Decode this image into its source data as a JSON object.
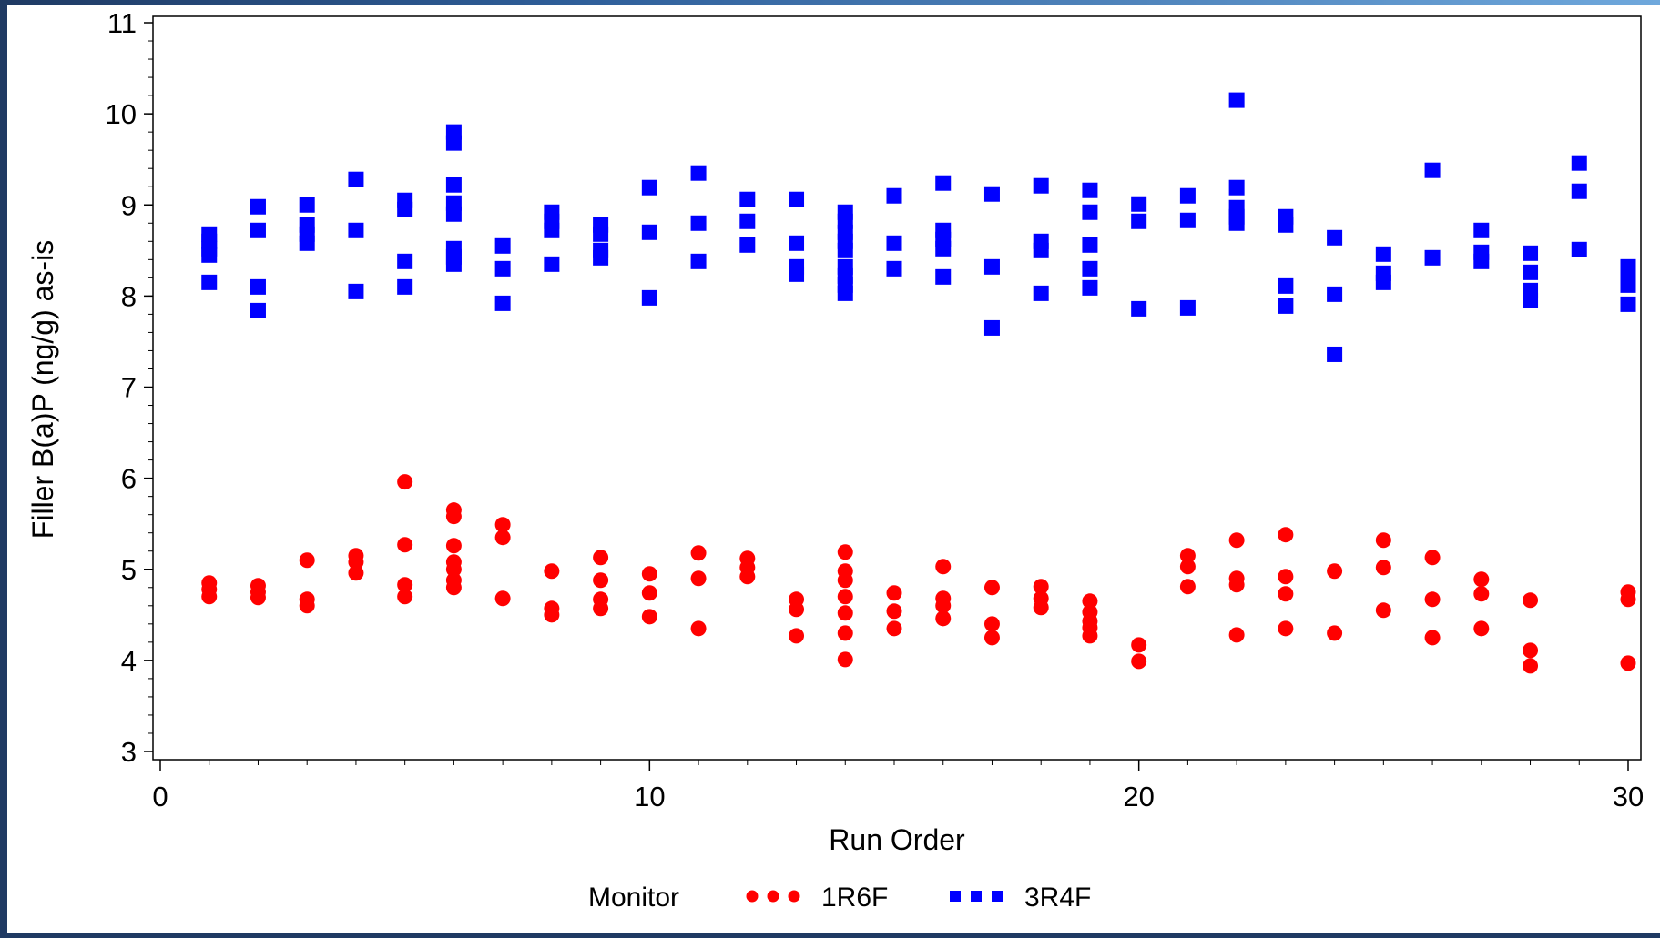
{
  "chart_data": {
    "type": "scatter",
    "title": "",
    "xlabel": "Run Order",
    "ylabel": "Filler B(a)P (ng/g) as-is",
    "xlim": [
      0,
      30
    ],
    "ylim": [
      3,
      11
    ],
    "x_ticks": [
      0,
      10,
      20,
      30
    ],
    "y_ticks": [
      3,
      4,
      5,
      6,
      7,
      8,
      9,
      10,
      11
    ],
    "x_tick_labels": [
      "0",
      "10",
      "20",
      "30"
    ],
    "y_tick_labels": [
      "3",
      "4",
      "5",
      "6",
      "7",
      "8",
      "9",
      "10",
      "11"
    ],
    "grid": false,
    "legend": {
      "title": "Monitor",
      "placement": "bottom-center"
    },
    "series": [
      {
        "name": "1R6F",
        "marker": "circle",
        "color": "#ff0000",
        "points": [
          [
            1,
            4.85
          ],
          [
            1,
            4.78
          ],
          [
            1,
            4.7
          ],
          [
            2,
            4.82
          ],
          [
            2,
            4.75
          ],
          [
            2,
            4.69
          ],
          [
            3,
            5.1
          ],
          [
            3,
            4.67
          ],
          [
            3,
            4.6
          ],
          [
            4,
            5.15
          ],
          [
            4,
            5.08
          ],
          [
            4,
            4.96
          ],
          [
            5,
            5.96
          ],
          [
            5,
            5.27
          ],
          [
            5,
            4.83
          ],
          [
            5,
            4.7
          ],
          [
            6,
            5.65
          ],
          [
            6,
            5.58
          ],
          [
            6,
            5.26
          ],
          [
            6,
            5.08
          ],
          [
            6,
            5.0
          ],
          [
            6,
            4.88
          ],
          [
            6,
            4.8
          ],
          [
            7,
            5.49
          ],
          [
            7,
            5.35
          ],
          [
            7,
            4.68
          ],
          [
            8,
            4.98
          ],
          [
            8,
            4.57
          ],
          [
            8,
            4.5
          ],
          [
            9,
            5.13
          ],
          [
            9,
            4.88
          ],
          [
            9,
            4.67
          ],
          [
            9,
            4.57
          ],
          [
            10,
            4.95
          ],
          [
            10,
            4.74
          ],
          [
            10,
            4.48
          ],
          [
            11,
            5.18
          ],
          [
            11,
            4.9
          ],
          [
            11,
            4.35
          ],
          [
            12,
            5.12
          ],
          [
            12,
            5.02
          ],
          [
            12,
            4.92
          ],
          [
            13,
            4.67
          ],
          [
            13,
            4.56
          ],
          [
            13,
            4.27
          ],
          [
            14,
            5.19
          ],
          [
            14,
            4.98
          ],
          [
            14,
            4.88
          ],
          [
            14,
            4.7
          ],
          [
            14,
            4.52
          ],
          [
            14,
            4.3
          ],
          [
            14,
            4.01
          ],
          [
            15,
            4.74
          ],
          [
            15,
            4.54
          ],
          [
            15,
            4.35
          ],
          [
            16,
            5.03
          ],
          [
            16,
            4.68
          ],
          [
            16,
            4.6
          ],
          [
            16,
            4.46
          ],
          [
            17,
            4.8
          ],
          [
            17,
            4.4
          ],
          [
            17,
            4.25
          ],
          [
            18,
            4.81
          ],
          [
            18,
            4.68
          ],
          [
            18,
            4.58
          ],
          [
            19,
            4.65
          ],
          [
            19,
            4.53
          ],
          [
            19,
            4.43
          ],
          [
            19,
            4.36
          ],
          [
            19,
            4.27
          ],
          [
            20,
            4.17
          ],
          [
            20,
            3.99
          ],
          [
            21,
            5.15
          ],
          [
            21,
            5.03
          ],
          [
            21,
            4.81
          ],
          [
            22,
            5.32
          ],
          [
            22,
            4.9
          ],
          [
            22,
            4.83
          ],
          [
            22,
            4.28
          ],
          [
            23,
            5.38
          ],
          [
            23,
            4.92
          ],
          [
            23,
            4.73
          ],
          [
            23,
            4.35
          ],
          [
            24,
            4.98
          ],
          [
            24,
            4.3
          ],
          [
            25,
            5.32
          ],
          [
            25,
            5.02
          ],
          [
            25,
            4.55
          ],
          [
            26,
            5.13
          ],
          [
            26,
            4.67
          ],
          [
            26,
            4.25
          ],
          [
            27,
            4.89
          ],
          [
            27,
            4.73
          ],
          [
            27,
            4.35
          ],
          [
            28,
            4.66
          ],
          [
            28,
            4.11
          ],
          [
            28,
            3.94
          ],
          [
            30,
            4.75
          ],
          [
            30,
            4.67
          ],
          [
            30,
            3.97
          ]
        ]
      },
      {
        "name": "3R4F",
        "marker": "square",
        "color": "#0000ff",
        "points": [
          [
            1,
            8.68
          ],
          [
            1,
            8.6
          ],
          [
            1,
            8.52
          ],
          [
            1,
            8.45
          ],
          [
            1,
            8.15
          ],
          [
            2,
            8.98
          ],
          [
            2,
            8.72
          ],
          [
            2,
            8.1
          ],
          [
            2,
            7.84
          ],
          [
            3,
            9.0
          ],
          [
            3,
            8.78
          ],
          [
            3,
            8.68
          ],
          [
            3,
            8.58
          ],
          [
            4,
            9.28
          ],
          [
            4,
            8.72
          ],
          [
            4,
            8.05
          ],
          [
            5,
            9.05
          ],
          [
            5,
            8.95
          ],
          [
            5,
            8.38
          ],
          [
            5,
            8.1
          ],
          [
            6,
            9.8
          ],
          [
            6,
            9.68
          ],
          [
            6,
            9.22
          ],
          [
            6,
            9.02
          ],
          [
            6,
            8.9
          ],
          [
            6,
            8.52
          ],
          [
            6,
            8.43
          ],
          [
            6,
            8.35
          ],
          [
            7,
            8.55
          ],
          [
            7,
            8.3
          ],
          [
            7,
            7.92
          ],
          [
            8,
            8.92
          ],
          [
            8,
            8.82
          ],
          [
            8,
            8.72
          ],
          [
            8,
            8.35
          ],
          [
            9,
            8.78
          ],
          [
            9,
            8.68
          ],
          [
            9,
            8.5
          ],
          [
            9,
            8.42
          ],
          [
            10,
            9.19
          ],
          [
            10,
            8.7
          ],
          [
            10,
            7.98
          ],
          [
            11,
            9.35
          ],
          [
            11,
            8.8
          ],
          [
            11,
            8.38
          ],
          [
            12,
            9.06
          ],
          [
            12,
            8.82
          ],
          [
            12,
            8.56
          ],
          [
            13,
            9.06
          ],
          [
            13,
            8.58
          ],
          [
            13,
            8.32
          ],
          [
            13,
            8.24
          ],
          [
            14,
            8.92
          ],
          [
            14,
            8.82
          ],
          [
            14,
            8.7
          ],
          [
            14,
            8.6
          ],
          [
            14,
            8.5
          ],
          [
            14,
            8.32
          ],
          [
            14,
            8.22
          ],
          [
            14,
            8.12
          ],
          [
            14,
            8.03
          ],
          [
            15,
            9.1
          ],
          [
            15,
            8.58
          ],
          [
            15,
            8.3
          ],
          [
            16,
            9.24
          ],
          [
            16,
            8.72
          ],
          [
            16,
            8.62
          ],
          [
            16,
            8.52
          ],
          [
            16,
            8.21
          ],
          [
            17,
            9.12
          ],
          [
            17,
            8.32
          ],
          [
            17,
            7.65
          ],
          [
            18,
            9.21
          ],
          [
            18,
            8.6
          ],
          [
            18,
            8.5
          ],
          [
            18,
            8.03
          ],
          [
            19,
            9.16
          ],
          [
            19,
            8.92
          ],
          [
            19,
            8.56
          ],
          [
            19,
            8.3
          ],
          [
            19,
            8.09
          ],
          [
            20,
            9.01
          ],
          [
            20,
            8.82
          ],
          [
            20,
            7.86
          ],
          [
            21,
            9.1
          ],
          [
            21,
            8.83
          ],
          [
            21,
            7.87
          ],
          [
            22,
            10.15
          ],
          [
            22,
            9.19
          ],
          [
            22,
            8.97
          ],
          [
            22,
            8.87
          ],
          [
            22,
            8.8
          ],
          [
            23,
            8.87
          ],
          [
            23,
            8.78
          ],
          [
            23,
            8.11
          ],
          [
            23,
            7.89
          ],
          [
            24,
            8.64
          ],
          [
            24,
            8.02
          ],
          [
            24,
            7.36
          ],
          [
            25,
            8.46
          ],
          [
            25,
            8.25
          ],
          [
            25,
            8.15
          ],
          [
            26,
            9.38
          ],
          [
            26,
            8.42
          ],
          [
            27,
            8.72
          ],
          [
            27,
            8.48
          ],
          [
            27,
            8.38
          ],
          [
            28,
            8.47
          ],
          [
            28,
            8.26
          ],
          [
            28,
            8.06
          ],
          [
            28,
            7.95
          ],
          [
            29,
            9.46
          ],
          [
            29,
            9.15
          ],
          [
            29,
            8.51
          ],
          [
            30,
            8.32
          ],
          [
            30,
            8.22
          ],
          [
            30,
            8.12
          ],
          [
            30,
            7.91
          ]
        ]
      }
    ]
  }
}
